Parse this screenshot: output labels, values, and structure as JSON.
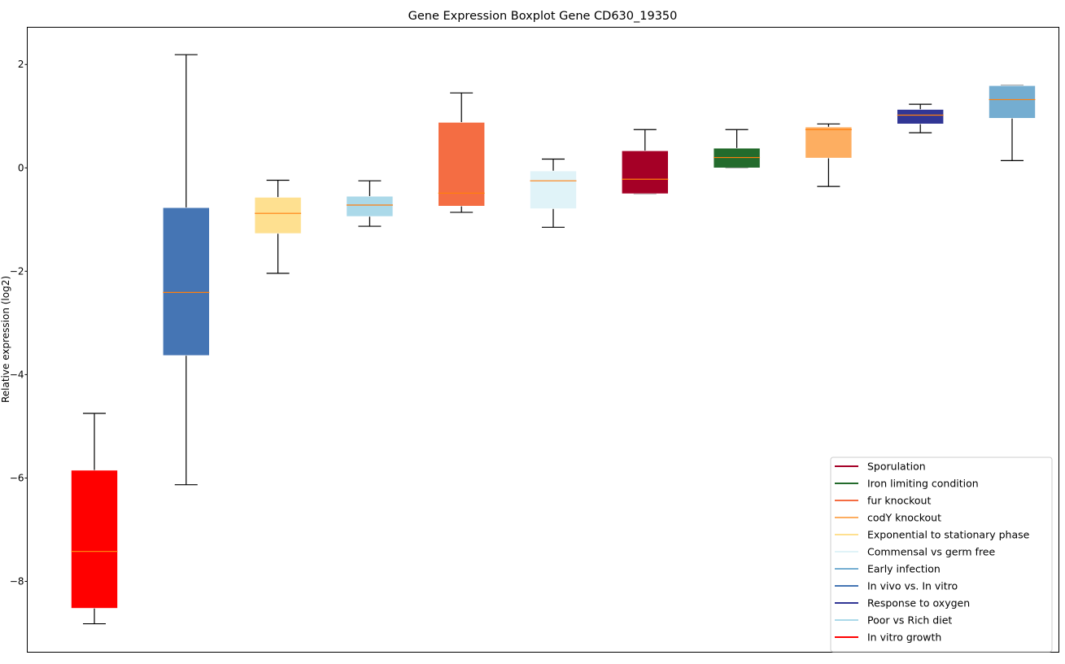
{
  "chart_data": {
    "type": "boxplot",
    "title": "Gene Expression Boxplot Gene CD630_19350",
    "xlabel": "",
    "ylabel": "Relative expression (log2)",
    "ylim": [
      -9.37,
      2.72
    ],
    "yticks": [
      -8,
      -6,
      -4,
      -2,
      0,
      2
    ],
    "ytick_labels": [
      "−8",
      "−6",
      "−4",
      "−2",
      "0",
      "2"
    ],
    "grid": false,
    "legend_position": "bottom-right",
    "median_color": "#ff7f0e",
    "boxes": [
      {
        "name": "In vitro growth",
        "color": "#ff0000",
        "whislo": -8.82,
        "q1": -8.52,
        "med": -7.42,
        "q3": -5.85,
        "whishi": -4.75
      },
      {
        "name": "In vivo vs. In vitro",
        "color": "#4575b4",
        "whislo": -6.13,
        "q1": -3.63,
        "med": -2.41,
        "q3": -0.77,
        "whishi": 2.19
      },
      {
        "name": "Exponential to stationary phase",
        "color": "#fee090",
        "whislo": -2.04,
        "q1": -1.27,
        "med": -0.88,
        "q3": -0.57,
        "whishi": -0.24
      },
      {
        "name": "Poor vs Rich diet",
        "color": "#abd9e9",
        "whislo": -1.13,
        "q1": -0.94,
        "med": -0.72,
        "q3": -0.55,
        "whishi": -0.25
      },
      {
        "name": "fur knockout",
        "color": "#f46d43",
        "whislo": -0.86,
        "q1": -0.74,
        "med": -0.49,
        "q3": 0.88,
        "whishi": 1.45
      },
      {
        "name": "Commensal vs germ free",
        "color": "#e0f3f8",
        "whislo": -1.15,
        "q1": -0.79,
        "med": -0.25,
        "q3": -0.06,
        "whishi": 0.17
      },
      {
        "name": "Sporulation",
        "color": "#a50026",
        "whislo": -0.5,
        "q1": -0.5,
        "med": -0.22,
        "q3": 0.33,
        "whishi": 0.74
      },
      {
        "name": "Iron limiting condition",
        "color": "#236b2c",
        "whislo": 0.0,
        "q1": 0.0,
        "med": 0.2,
        "q3": 0.38,
        "whishi": 0.74
      },
      {
        "name": "codY knockout",
        "color": "#fdae61",
        "whislo": -0.36,
        "q1": 0.19,
        "med": 0.74,
        "q3": 0.79,
        "whishi": 0.85
      },
      {
        "name": "Response to oxygen",
        "color": "#313695",
        "whislo": 0.68,
        "q1": 0.85,
        "med": 1.02,
        "q3": 1.13,
        "whishi": 1.23
      },
      {
        "name": "Early infection",
        "color": "#74add1",
        "whislo": 0.14,
        "q1": 0.96,
        "med": 1.32,
        "q3": 1.59,
        "whishi": 1.59
      }
    ],
    "legend": [
      {
        "label": "Sporulation",
        "color": "#a50026"
      },
      {
        "label": "Iron limiting condition",
        "color": "#236b2c"
      },
      {
        "label": "fur knockout",
        "color": "#f46d43"
      },
      {
        "label": "codY knockout",
        "color": "#fdae61"
      },
      {
        "label": "Exponential to stationary phase",
        "color": "#fee090"
      },
      {
        "label": "Commensal vs germ free",
        "color": "#e0f3f8"
      },
      {
        "label": "Early infection",
        "color": "#74add1"
      },
      {
        "label": "In vivo vs. In vitro",
        "color": "#4575b4"
      },
      {
        "label": "Response to oxygen",
        "color": "#313695"
      },
      {
        "label": "Poor vs Rich diet",
        "color": "#abd9e9"
      },
      {
        "label": "In vitro growth",
        "color": "#ff0000"
      }
    ]
  }
}
